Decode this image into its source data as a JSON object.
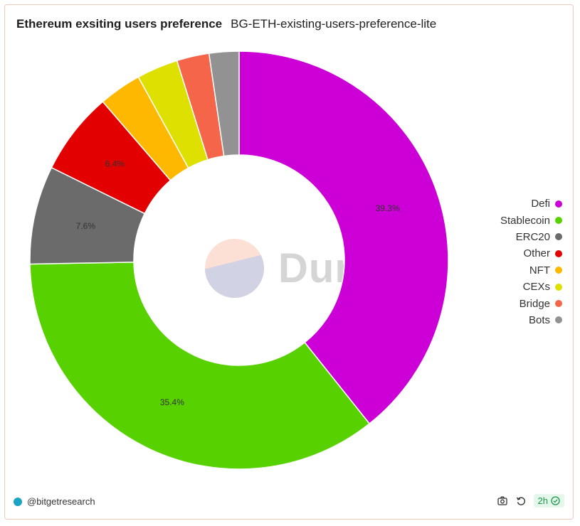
{
  "header": {
    "title": "Ethereum exsiting users preference",
    "subtitle": "BG-ETH-existing-users-preference-lite"
  },
  "chart_data": {
    "type": "pie",
    "donut": true,
    "start_angle_deg": 0,
    "direction": "clockwise",
    "slices": [
      {
        "name": "Defi",
        "value": 39.3,
        "color": "#cc00d6",
        "label": "39.3%"
      },
      {
        "name": "Stablecoin",
        "value": 35.4,
        "color": "#57d100",
        "label": "35.4%"
      },
      {
        "name": "ERC20",
        "value": 7.6,
        "color": "#6b6b6b",
        "label": "7.6%"
      },
      {
        "name": "Other",
        "value": 6.4,
        "color": "#e30000",
        "label": "6.4%"
      },
      {
        "name": "NFT",
        "value": 3.3,
        "color": "#ffb800",
        "label": ""
      },
      {
        "name": "CEXs",
        "value": 3.2,
        "color": "#dde000",
        "label": ""
      },
      {
        "name": "Bridge",
        "value": 2.5,
        "color": "#f4654a",
        "label": ""
      },
      {
        "name": "Bots",
        "value": 2.3,
        "color": "#929292",
        "label": ""
      }
    ],
    "legend_position": "right"
  },
  "watermark": {
    "text": "Dune"
  },
  "footer": {
    "handle": "@bitgetresearch",
    "badge": "2h",
    "brand_color": "#1aa3c4",
    "badge_color": "#1b9a4b"
  },
  "icons": {
    "camera": "camera-icon",
    "refresh": "refresh-icon",
    "check": "check-circle-icon"
  }
}
